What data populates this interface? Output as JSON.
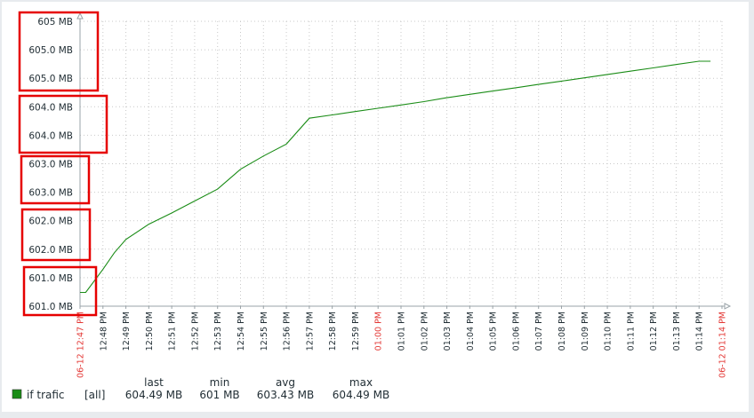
{
  "chart_data": {
    "type": "line",
    "title": "",
    "xlabel": "",
    "ylabel": "",
    "ylim": [
      600.9,
      605.2
    ],
    "yticks": [
      "605 MB",
      "605.0 MB",
      "605.0 MB",
      "604.0 MB",
      "604.0 MB",
      "603.0 MB",
      "603.0 MB",
      "602.0 MB",
      "602.0 MB",
      "601.0 MB",
      "601.0 MB"
    ],
    "xticks": [
      {
        "label": "06-12 12:47 PM",
        "highlight": true
      },
      {
        "label": "12:48 PM",
        "highlight": false
      },
      {
        "label": "12:49 PM",
        "highlight": false
      },
      {
        "label": "12:50 PM",
        "highlight": false
      },
      {
        "label": "12:51 PM",
        "highlight": false
      },
      {
        "label": "12:52 PM",
        "highlight": false
      },
      {
        "label": "12:53 PM",
        "highlight": false
      },
      {
        "label": "12:54 PM",
        "highlight": false
      },
      {
        "label": "12:55 PM",
        "highlight": false
      },
      {
        "label": "12:56 PM",
        "highlight": false
      },
      {
        "label": "12:57 PM",
        "highlight": false
      },
      {
        "label": "12:58 PM",
        "highlight": false
      },
      {
        "label": "12:59 PM",
        "highlight": false
      },
      {
        "label": "01:00 PM",
        "highlight": true
      },
      {
        "label": "01:01 PM",
        "highlight": false
      },
      {
        "label": "01:02 PM",
        "highlight": false
      },
      {
        "label": "01:03 PM",
        "highlight": false
      },
      {
        "label": "01:04 PM",
        "highlight": false
      },
      {
        "label": "01:05 PM",
        "highlight": false
      },
      {
        "label": "01:06 PM",
        "highlight": false
      },
      {
        "label": "01:07 PM",
        "highlight": false
      },
      {
        "label": "01:08 PM",
        "highlight": false
      },
      {
        "label": "01:09 PM",
        "highlight": false
      },
      {
        "label": "01:10 PM",
        "highlight": false
      },
      {
        "label": "01:11 PM",
        "highlight": false
      },
      {
        "label": "01:12 PM",
        "highlight": false
      },
      {
        "label": "01:13 PM",
        "highlight": false
      },
      {
        "label": "01:14 PM",
        "highlight": false
      },
      {
        "label": "06-12 01:14 PM",
        "highlight": true
      }
    ],
    "grid": true,
    "legend_position": "bottom-left",
    "series": [
      {
        "name": "if trafic",
        "color": "#1a8c16",
        "x": [
          "12:47",
          "12:47:15",
          "12:48",
          "12:48:30",
          "12:49",
          "12:50",
          "12:51",
          "12:52",
          "12:53",
          "12:54",
          "12:55",
          "12:56",
          "12:57",
          "12:58",
          "12:59",
          "01:00",
          "01:01",
          "01:02",
          "01:03",
          "01:04",
          "01:05",
          "01:06",
          "01:07",
          "01:08",
          "01:09",
          "01:10",
          "01:11",
          "01:12",
          "01:13",
          "01:14",
          "01:14:30"
        ],
        "values": [
          601.0,
          601.0,
          601.35,
          601.6,
          601.8,
          602.03,
          602.2,
          602.38,
          602.56,
          602.86,
          603.06,
          603.24,
          603.63,
          603.68,
          603.73,
          603.78,
          603.83,
          603.88,
          603.94,
          603.99,
          604.04,
          604.09,
          604.14,
          604.19,
          604.24,
          604.29,
          604.34,
          604.39,
          604.44,
          604.49,
          604.49
        ],
        "stats": {
          "func": "[all]",
          "last": "604.49 MB",
          "min": "601 MB",
          "avg": "603.43 MB",
          "max": "604.49 MB"
        }
      }
    ],
    "legend_headers": {
      "last": "last",
      "min": "min",
      "avg": "avg",
      "max": "max"
    }
  },
  "annotation_color": "#e60000",
  "grid_color": "#c9c9c9",
  "axis_color": "#9aa3a8"
}
